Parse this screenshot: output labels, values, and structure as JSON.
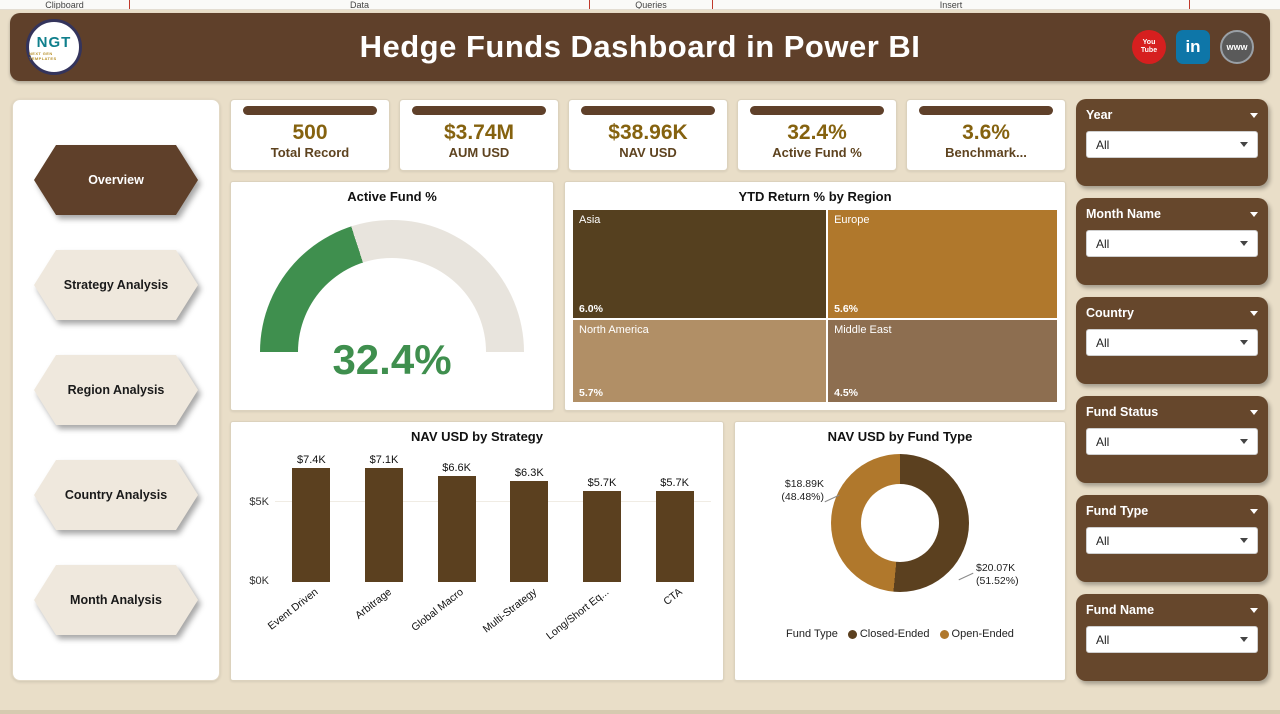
{
  "ribbon": {
    "groups": [
      "Clipboard",
      "Data",
      "Queries",
      "Insert"
    ]
  },
  "header": {
    "title": "Hedge Funds Dashboard in Power BI",
    "logo": {
      "text": "NGT",
      "subtext": "NEXT GEN TEMPLATES"
    },
    "social": [
      {
        "name": "youtube",
        "label": "You\nTube",
        "color": "#d61f1f"
      },
      {
        "name": "linkedin",
        "label": "in",
        "color": "#0e76a8"
      },
      {
        "name": "website",
        "label": "www",
        "color": "#5a5a5a"
      }
    ]
  },
  "nav": {
    "items": [
      {
        "label": "Overview",
        "active": true
      },
      {
        "label": "Strategy Analysis",
        "active": false
      },
      {
        "label": "Region Analysis",
        "active": false
      },
      {
        "label": "Country Analysis",
        "active": false
      },
      {
        "label": "Month Analysis",
        "active": false
      }
    ]
  },
  "kpis": [
    {
      "value": "500",
      "label": "Total Record"
    },
    {
      "value": "$3.74M",
      "label": "AUM USD"
    },
    {
      "value": "$38.96K",
      "label": "NAV USD"
    },
    {
      "value": "32.4%",
      "label": "Active Fund %"
    },
    {
      "value": "3.6%",
      "label": "Benchmark..."
    }
  ],
  "slicers": [
    {
      "label": "Year",
      "value": "All"
    },
    {
      "label": "Month Name",
      "value": "All"
    },
    {
      "label": "Country",
      "value": "All"
    },
    {
      "label": "Fund Status",
      "value": "All"
    },
    {
      "label": "Fund Type",
      "value": "All"
    },
    {
      "label": "Fund Name",
      "value": "All"
    }
  ],
  "chart_data": [
    {
      "type": "gauge",
      "title": "Active Fund %",
      "value": 32.4,
      "value_display": "32.4%",
      "color": "#3f8f4e",
      "track_color": "#e8e4dd",
      "sweep_deg": 72
    },
    {
      "type": "heatmap",
      "subtype": "treemap",
      "title": "YTD Return % by Region",
      "items": [
        {
          "label": "Asia",
          "value": 6.0,
          "value_display": "6.0%",
          "color": "#55401f",
          "x": 0,
          "y": 0,
          "w": 52.3,
          "h": 56.5
        },
        {
          "label": "Europe",
          "value": 5.6,
          "value_display": "5.6%",
          "color": "#b0782c",
          "x": 52.7,
          "y": 0,
          "w": 47.3,
          "h": 56.5
        },
        {
          "label": "North America",
          "value": 5.7,
          "value_display": "5.7%",
          "color": "#b18f66",
          "x": 0,
          "y": 57.2,
          "w": 52.3,
          "h": 42.8
        },
        {
          "label": "Middle East",
          "value": 4.5,
          "value_display": "4.5%",
          "color": "#8d6e50",
          "x": 52.7,
          "y": 57.2,
          "w": 47.3,
          "h": 42.8
        }
      ]
    },
    {
      "type": "bar",
      "title": "NAV USD by Strategy",
      "categories": [
        "Event Driven",
        "Arbitrage",
        "Global Macro",
        "Multi-Strategy",
        "Long/Short Eq...",
        "CTA"
      ],
      "values": [
        7.4,
        7.1,
        6.6,
        6.3,
        5.7,
        5.7
      ],
      "value_labels": [
        "$7.4K",
        "$7.1K",
        "$6.6K",
        "$6.3K",
        "$5.7K",
        "$5.7K"
      ],
      "ylabel_ticks": [
        "$0K",
        "$5K"
      ],
      "ymax": 8,
      "bar_color": "#5b401f"
    },
    {
      "type": "pie",
      "subtype": "donut",
      "title": "NAV USD by Fund Type",
      "legend_title": "Fund Type",
      "slices": [
        {
          "label": "Closed-Ended",
          "value": 51.52,
          "amount": "$20.07K",
          "pct": "(51.52%)",
          "color": "#5b401f"
        },
        {
          "label": "Open-Ended",
          "value": 48.48,
          "amount": "$18.89K",
          "pct": "(48.48%)",
          "color": "#b0782c"
        }
      ]
    }
  ]
}
